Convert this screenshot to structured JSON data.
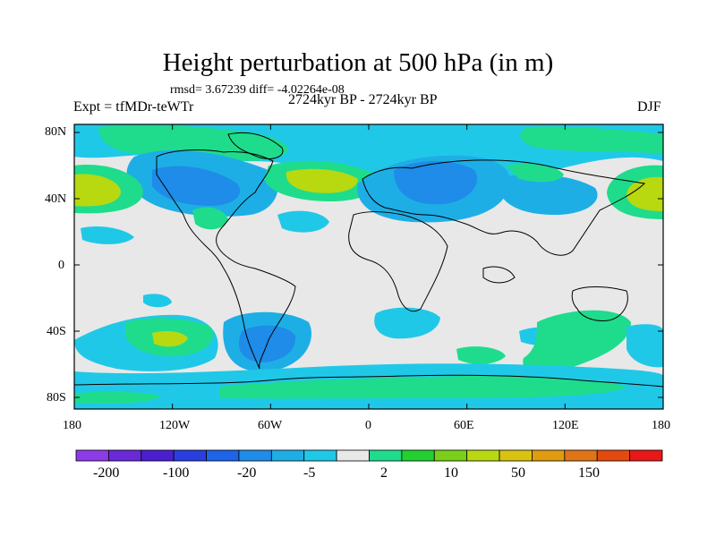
{
  "title": "Height perturbation at 500 hPa (in m)",
  "stats": "rmsd= 3.67239  diff= -4.02264e-08",
  "experiment": "Expt = tfMDr-teWTr",
  "period": "2724kyr BP - 2724kyr BP",
  "season": "DJF",
  "lat_labels": [
    "80N",
    "40N",
    "0",
    "40S",
    "80S"
  ],
  "lon_labels": [
    "180",
    "120W",
    "60W",
    "0",
    "60E",
    "120E",
    "180"
  ],
  "colorbar": {
    "colors": [
      "#8c3ce6",
      "#6a2ad8",
      "#4b1fd0",
      "#2a3ee0",
      "#1e64e8",
      "#1e8ce8",
      "#1eaee6",
      "#20c8e8",
      "#e8e8e8",
      "#1edc8c",
      "#22d030",
      "#7ad018",
      "#b8d810",
      "#d8c410",
      "#e09c10",
      "#e07418",
      "#e24a10",
      "#e81818"
    ],
    "labels": [
      "-200",
      "-100",
      "-20",
      "-5",
      "2",
      "10",
      "50",
      "150"
    ]
  },
  "colors": {
    "background": "#e8e8e8",
    "light_blue": "#20c8e8",
    "mid_blue": "#1eaee6",
    "blue": "#1e8ce8",
    "green": "#1edc8c",
    "yellow_green": "#b8d810",
    "coast": "#000000"
  }
}
